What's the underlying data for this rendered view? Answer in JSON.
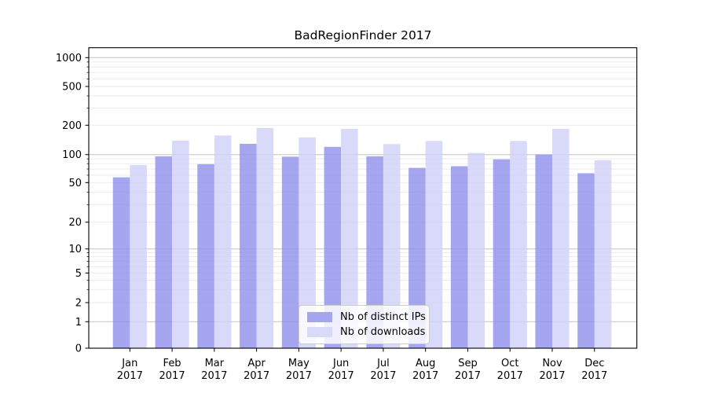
{
  "figure": {
    "title": "BadRegionFinder 2017"
  },
  "chart_data": {
    "type": "bar",
    "title": "BadRegionFinder 2017",
    "categories": [
      "Jan 2017",
      "Feb 2017",
      "Mar 2017",
      "Apr 2017",
      "May 2017",
      "Jun 2017",
      "Jul 2017",
      "Aug 2017",
      "Sep 2017",
      "Oct 2017",
      "Nov 2017",
      "Dec 2017"
    ],
    "x_tick_months": [
      "Jan",
      "Feb",
      "Mar",
      "Apr",
      "May",
      "Jun",
      "Jul",
      "Aug",
      "Sep",
      "Oct",
      "Nov",
      "Dec"
    ],
    "x_tick_year": "2017",
    "series": [
      {
        "name": "Nb of distinct IPs",
        "color": "#a5a5f0",
        "values": [
          57,
          96,
          79,
          129,
          95,
          120,
          96,
          72,
          75,
          89,
          100,
          63
        ]
      },
      {
        "name": "Nb of downloads",
        "color": "#d9d9f9",
        "values": [
          77,
          139,
          157,
          187,
          150,
          183,
          128,
          138,
          104,
          138,
          183,
          87
        ]
      }
    ],
    "xlabel": "",
    "ylabel": "",
    "yscale": "symlog",
    "y_ticks": [
      0,
      1,
      2,
      5,
      10,
      20,
      50,
      100,
      200,
      500,
      1000
    ],
    "ylim": [
      0,
      1265
    ],
    "grid": "both",
    "grid_major_color": "#c3c3c3",
    "grid_minor_color": "#eaeaea",
    "legend_position": "lower center",
    "legend_labels": [
      "Nb of distinct IPs",
      "Nb of downloads"
    ]
  }
}
